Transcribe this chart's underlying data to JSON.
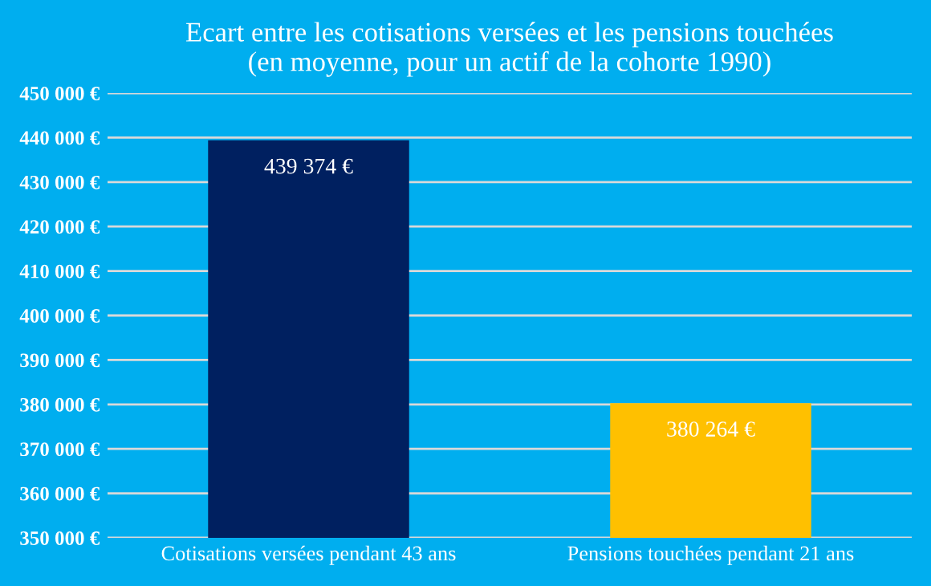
{
  "chart_data": {
    "type": "bar",
    "title": "Ecart entre les cotisations versées et les pensions touchées\n(en moyenne, pour un actif de la cohorte 1990)",
    "categories": [
      "Cotisations versées pendant 43 ans",
      "Pensions touchées pendant 21 ans"
    ],
    "values": [
      439374,
      380264
    ],
    "colors": [
      "#002060",
      "#ffc000"
    ],
    "value_labels": [
      "439 374 €",
      "380 264 €"
    ],
    "ylim": [
      350000,
      450000
    ],
    "yticks": [
      {
        "value": 350000,
        "label": "350 000 €"
      },
      {
        "value": 360000,
        "label": "360 000 €"
      },
      {
        "value": 370000,
        "label": "370 000 €"
      },
      {
        "value": 380000,
        "label": "380 000 €"
      },
      {
        "value": 390000,
        "label": "390 000 €"
      },
      {
        "value": 400000,
        "label": "400 000 €"
      },
      {
        "value": 410000,
        "label": "410 000 €"
      },
      {
        "value": 420000,
        "label": "420 000 €"
      },
      {
        "value": 430000,
        "label": "430 000 €"
      },
      {
        "value": 440000,
        "label": "440 000 €"
      },
      {
        "value": 450000,
        "label": "450 000 €"
      }
    ],
    "grid": "y",
    "legend": false
  }
}
